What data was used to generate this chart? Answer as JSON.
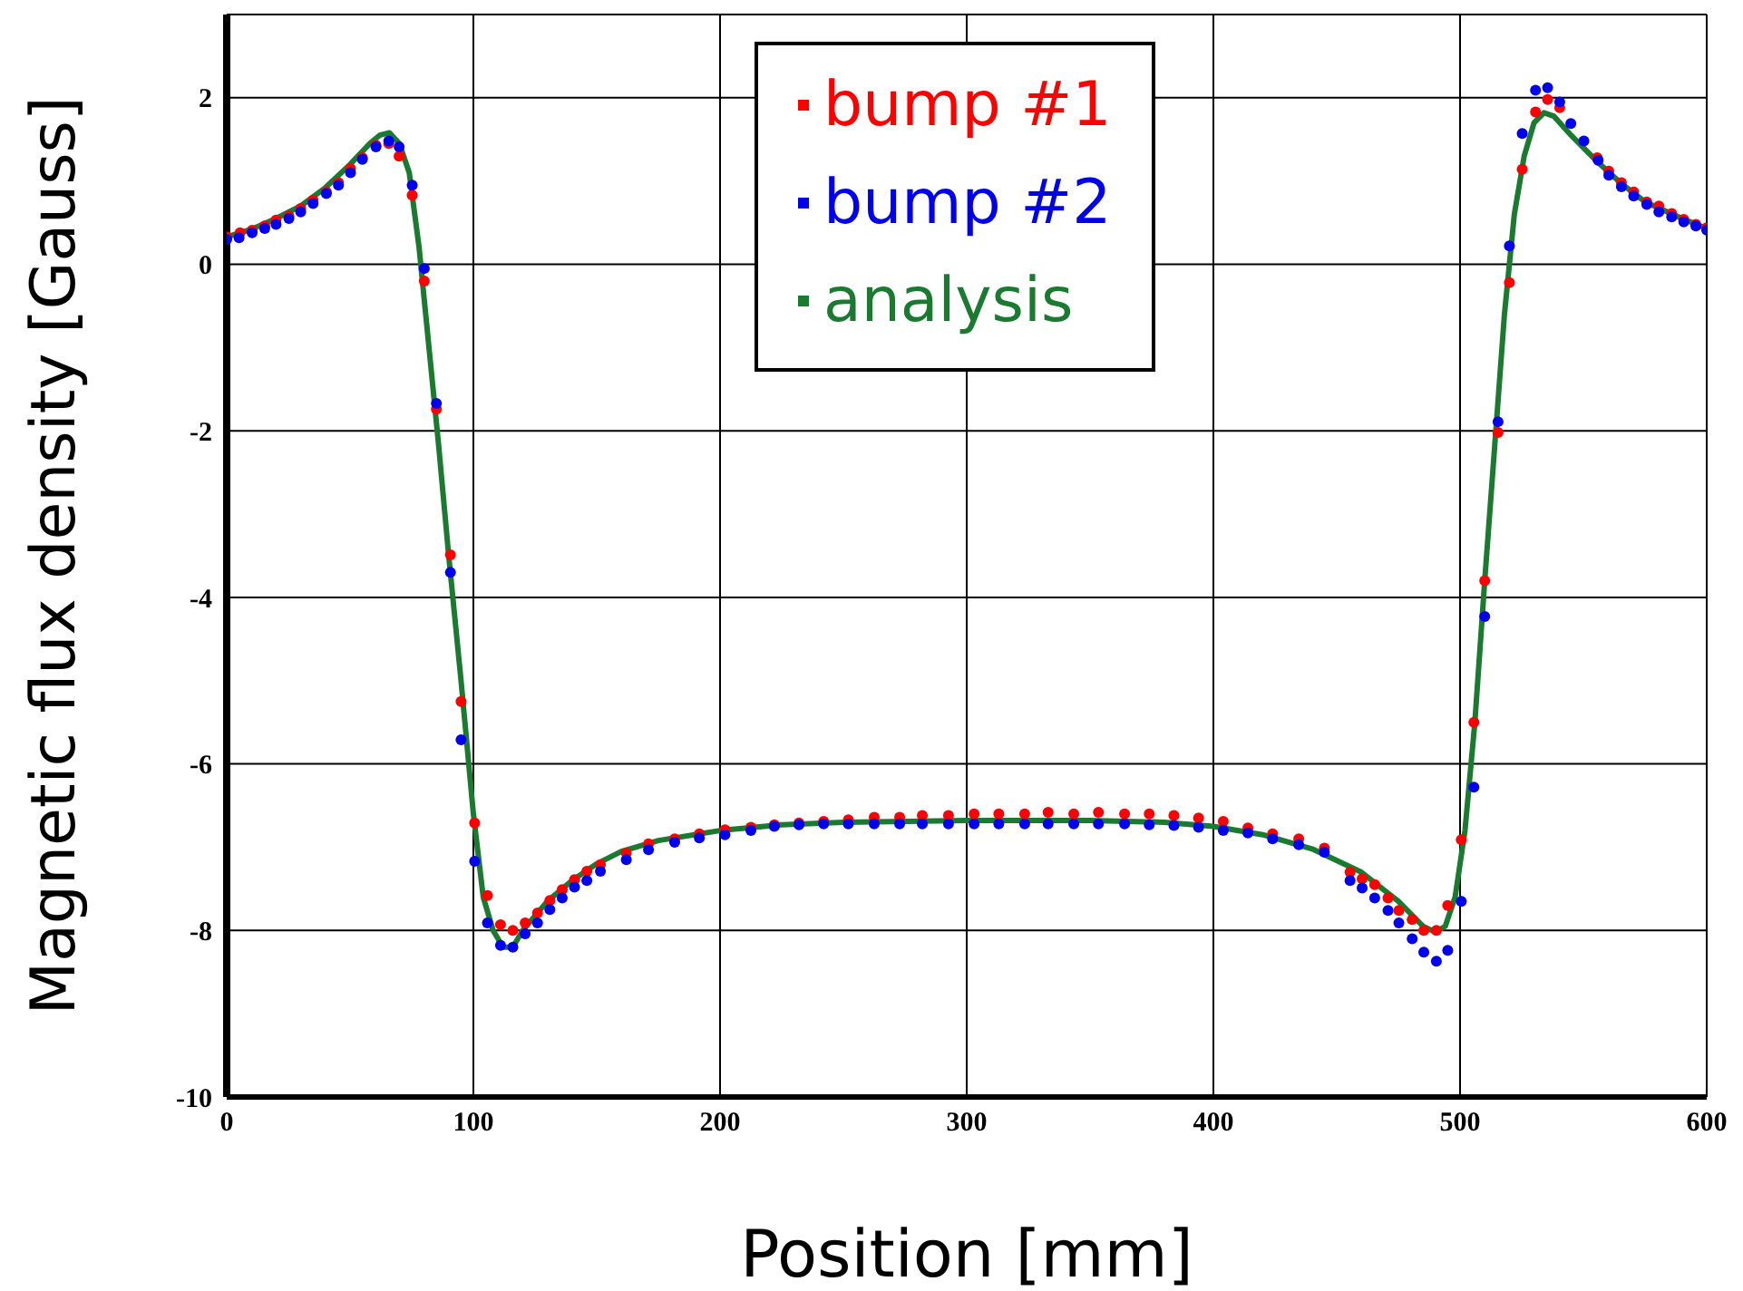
{
  "chart_data": {
    "type": "scatter",
    "xlabel": "Position [mm]",
    "ylabel": "Magnetic flux density [Gauss]",
    "xlim": [
      0,
      600
    ],
    "xticks": [
      0,
      100,
      200,
      300,
      400,
      500,
      600
    ],
    "ylim": [
      -10,
      3
    ],
    "yticks": [
      -10,
      -8,
      -6,
      -4,
      -2,
      0,
      2
    ],
    "grid": true,
    "legend": "top right",
    "marker": "circle",
    "series": [
      {
        "name": "bump #1",
        "color": "#ff0000",
        "x": [
          0,
          5.4,
          10.3,
          15.4,
          20,
          25.2,
          30,
          35,
          40.4,
          45.3,
          50.2,
          55,
          60.5,
          65.7,
          69.9,
          75.2,
          80.1,
          85,
          90.7,
          95,
          100.5,
          105.7,
          111,
          116,
          121,
          126,
          131,
          136,
          141,
          146,
          151.5,
          162,
          171,
          181.6,
          191.6,
          202,
          212.5,
          222,
          232,
          242,
          252,
          262.5,
          272.8,
          282,
          292.6,
          303,
          313,
          323.5,
          333,
          343.4,
          353.4,
          364,
          374,
          384,
          394,
          404,
          414,
          424,
          434.6,
          445,
          455.4,
          460.3,
          465.4,
          470.8,
          475.2,
          480.6,
          485.3,
          490.4,
          495,
          500.5,
          505.6,
          510,
          515.4,
          520,
          525.2,
          530.6,
          535.5,
          540.4,
          555.6,
          560.3,
          565.4,
          570.4,
          575.7,
          580.6,
          585.8,
          590.7,
          595.6,
          600
        ],
        "values": [
          0.33,
          0.38,
          0.41,
          0.46,
          0.53,
          0.58,
          0.67,
          0.77,
          0.87,
          0.98,
          1.15,
          1.28,
          1.43,
          1.45,
          1.3,
          0.83,
          -0.2,
          -1.74,
          -3.49,
          -5.25,
          -6.71,
          -7.58,
          -7.93,
          -8.0,
          -7.91,
          -7.79,
          -7.64,
          -7.51,
          -7.39,
          -7.29,
          -7.21,
          -7.07,
          -6.96,
          -6.9,
          -6.84,
          -6.79,
          -6.76,
          -6.73,
          -6.71,
          -6.69,
          -6.67,
          -6.64,
          -6.64,
          -6.62,
          -6.62,
          -6.6,
          -6.6,
          -6.6,
          -6.58,
          -6.6,
          -6.58,
          -6.6,
          -6.6,
          -6.62,
          -6.65,
          -6.69,
          -6.77,
          -6.84,
          -6.9,
          -7.01,
          -7.3,
          -7.38,
          -7.45,
          -7.61,
          -7.76,
          -7.87,
          -8.0,
          -8.0,
          -7.7,
          -6.91,
          -5.5,
          -3.8,
          -2.02,
          -0.22,
          1.14,
          1.83,
          1.98,
          1.88,
          1.28,
          1.12,
          0.98,
          0.87,
          0.75,
          0.7,
          0.61,
          0.54,
          0.48,
          0.44
        ]
      },
      {
        "name": "bump #2",
        "color": "#0000ee",
        "x": [
          0,
          5,
          10.3,
          15.4,
          20,
          25.2,
          30,
          35,
          40.4,
          45.3,
          50.2,
          55,
          60.5,
          65.7,
          69.9,
          75.2,
          80.1,
          85,
          90.7,
          95,
          100.5,
          105.7,
          111,
          116,
          121,
          126,
          131,
          136,
          141,
          146,
          151.5,
          162,
          171,
          181.6,
          191.6,
          202,
          212.5,
          222,
          232,
          242,
          252,
          262.5,
          272.8,
          282,
          292.6,
          303,
          313,
          323.5,
          333,
          343.4,
          353.4,
          364,
          374,
          384,
          394,
          404,
          414,
          424,
          434.6,
          445,
          455.4,
          460.3,
          465.4,
          470.8,
          475.2,
          480.6,
          485.3,
          490.4,
          495,
          500.5,
          505.6,
          510,
          515.4,
          520,
          525.2,
          530.6,
          535.5,
          540.4,
          544.9,
          550.2,
          556,
          560.3,
          565.4,
          570.4,
          575.7,
          580.6,
          585.8,
          590.7,
          595.6,
          600
        ],
        "values": [
          0.3,
          0.32,
          0.38,
          0.43,
          0.48,
          0.55,
          0.63,
          0.73,
          0.85,
          0.95,
          1.1,
          1.26,
          1.41,
          1.48,
          1.41,
          0.95,
          -0.05,
          -1.67,
          -3.7,
          -5.71,
          -7.17,
          -7.91,
          -8.18,
          -8.2,
          -8.04,
          -7.91,
          -7.75,
          -7.61,
          -7.48,
          -7.4,
          -7.29,
          -7.15,
          -7.03,
          -6.94,
          -6.89,
          -6.85,
          -6.8,
          -6.75,
          -6.73,
          -6.72,
          -6.72,
          -6.72,
          -6.72,
          -6.72,
          -6.72,
          -6.72,
          -6.72,
          -6.72,
          -6.72,
          -6.72,
          -6.72,
          -6.72,
          -6.73,
          -6.74,
          -6.76,
          -6.8,
          -6.83,
          -6.9,
          -6.97,
          -7.06,
          -7.4,
          -7.49,
          -7.61,
          -7.76,
          -7.91,
          -8.1,
          -8.26,
          -8.37,
          -8.24,
          -7.65,
          -6.28,
          -4.23,
          -1.89,
          0.22,
          1.57,
          2.09,
          2.12,
          1.95,
          1.69,
          1.48,
          1.25,
          1.07,
          0.93,
          0.82,
          0.72,
          0.63,
          0.57,
          0.51,
          0.46,
          0.41
        ]
      },
      {
        "name": "analysis",
        "color": "#1a7a30",
        "type": "line",
        "marker": "none",
        "x": [
          0,
          10,
          20,
          30,
          40,
          50,
          58,
          62,
          66,
          70,
          74,
          78,
          82,
          86,
          90,
          95,
          100,
          104,
          108,
          112,
          116,
          120,
          130,
          140,
          150,
          160,
          175,
          200,
          225,
          250,
          300,
          350,
          380,
          400,
          420,
          440,
          460,
          475,
          485,
          490,
          494,
          498,
          502,
          506,
          510,
          514,
          518,
          522,
          526,
          530,
          534,
          538,
          545,
          555,
          565,
          575,
          590,
          600
        ],
        "values": [
          0.33,
          0.42,
          0.55,
          0.7,
          0.92,
          1.2,
          1.45,
          1.55,
          1.58,
          1.45,
          1.1,
          0.2,
          -1.0,
          -2.2,
          -3.5,
          -5.0,
          -6.6,
          -7.6,
          -8.0,
          -8.2,
          -8.2,
          -8.0,
          -7.65,
          -7.4,
          -7.2,
          -7.05,
          -6.92,
          -6.8,
          -6.73,
          -6.7,
          -6.68,
          -6.68,
          -6.7,
          -6.75,
          -6.85,
          -7.02,
          -7.3,
          -7.65,
          -7.95,
          -8.02,
          -7.95,
          -7.6,
          -6.8,
          -5.5,
          -3.8,
          -2.2,
          -0.6,
          0.6,
          1.3,
          1.7,
          1.82,
          1.78,
          1.55,
          1.25,
          0.98,
          0.75,
          0.55,
          0.43
        ]
      }
    ]
  }
}
